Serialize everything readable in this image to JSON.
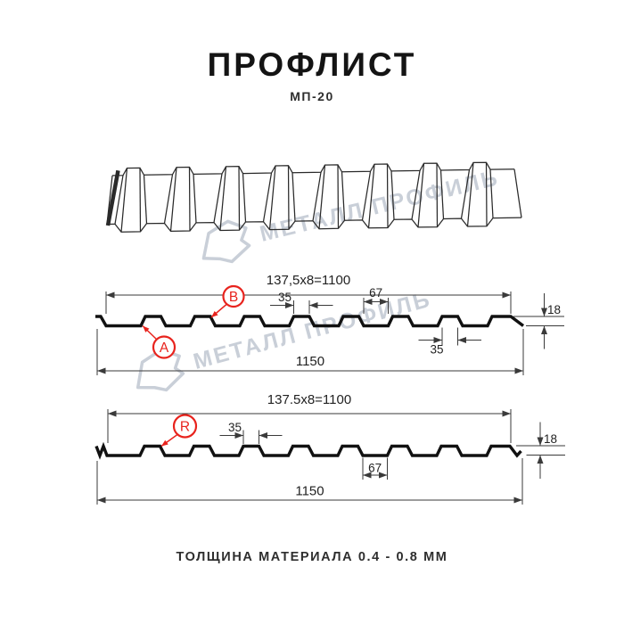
{
  "title": "ПРОФЛИСТ",
  "subtitle": "МП-20",
  "footer": "ТОЛЩИНА МАТЕРИАЛА 0.4 - 0.8 ММ",
  "watermark": {
    "text": "МЕТАЛЛ ПРОФИЛЬ",
    "logo_icon": "metall-profil-logo",
    "color": "#c9cfd8"
  },
  "colors": {
    "ink": "#111111",
    "dimension_lines": "#3a3a3a",
    "accent_red": "#e8231d",
    "watermark": "#c9cfd8"
  },
  "section1": {
    "dim_pitch": "137,5x8=1100",
    "dim_rib_top": "35",
    "dim_valley": "67",
    "dim_height": "18",
    "dim_rib_bottom": "35",
    "dim_overall": "1150",
    "label_a": "A",
    "label_b": "B"
  },
  "section2": {
    "dim_pitch": "137.5x8=1100",
    "dim_rib_top": "35",
    "dim_valley": "67",
    "dim_height": "18",
    "dim_overall": "1150",
    "label_r": "R"
  }
}
